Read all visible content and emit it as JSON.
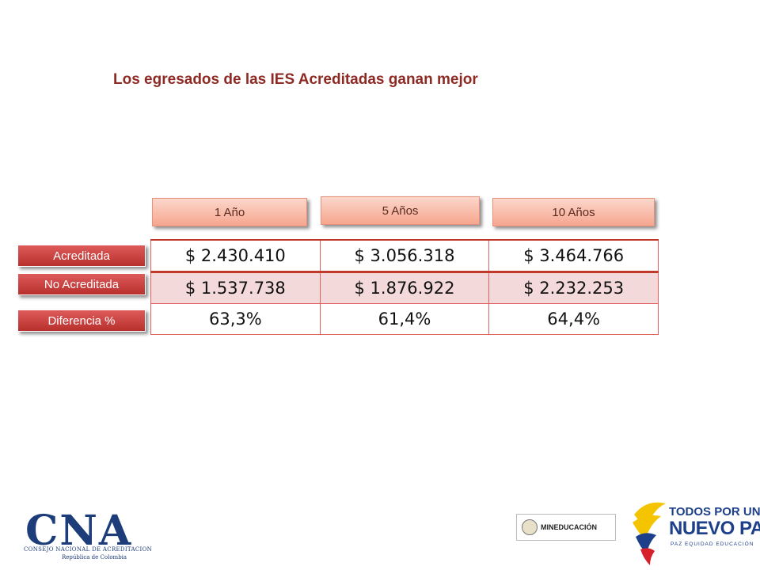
{
  "title": "Los egresados de las IES Acreditadas ganan mejor",
  "columns": [
    "1 Año",
    "5 Años",
    "10 Años"
  ],
  "rows": [
    {
      "label": "Acreditada",
      "values": [
        "$ 2.430.410",
        "$ 3.056.318",
        "$ 3.464.766"
      ]
    },
    {
      "label": "No Acreditada",
      "values": [
        "$ 1.537.738",
        "$ 1.876.922",
        "$ 2.232.253"
      ]
    },
    {
      "label": "Diferencia %",
      "values": [
        "63,3%",
        "61,4%",
        "64,4%"
      ]
    }
  ],
  "logos": {
    "cna_letters": "CNA",
    "cna_line1": "CONSEJO NACIONAL DE ACREDITACION",
    "cna_line2": "República de Colombia",
    "minedu": "MINEDUCACIÓN",
    "tpnp_line1": "TODOS POR UN",
    "tpnp_line2": "NUEVO PAÍS",
    "tpnp_line3": "PAZ  EQUIDAD  EDUCACIÓN"
  },
  "colors": {
    "title": "#8e2a24",
    "row_header": "#c0392b",
    "column_header": "#f6a68f",
    "cna_blue": "#1d3d7a"
  }
}
